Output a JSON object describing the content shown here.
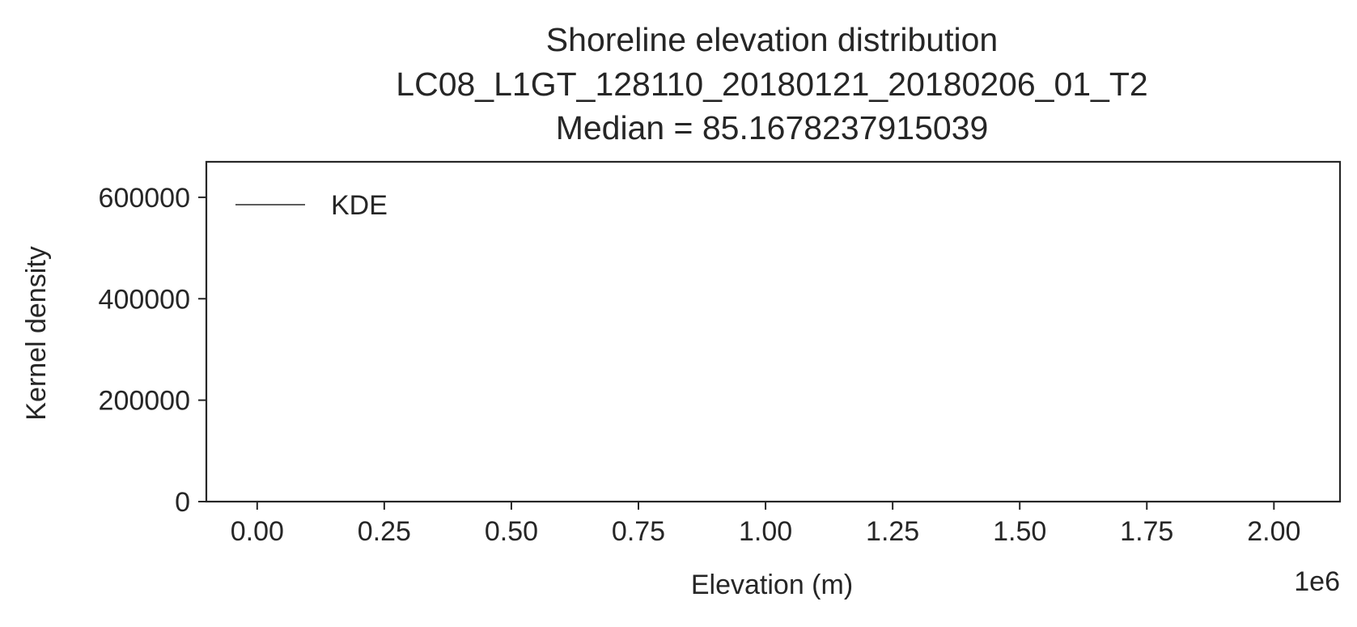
{
  "chart_data": {
    "type": "line",
    "title_lines": [
      "Shoreline elevation distribution",
      "LC08_L1GT_128110_20180121_20180206_01_T2",
      "Median = 85.1678237915039"
    ],
    "xlabel": "Elevation (m)",
    "ylabel": "Kernel density",
    "x_offset_label": "1e6",
    "xlim": [
      -100000,
      2130000
    ],
    "ylim": [
      0,
      670000
    ],
    "x_ticks": [
      0,
      250000,
      500000,
      750000,
      1000000,
      1250000,
      1500000,
      1750000,
      2000000
    ],
    "x_tick_labels": [
      "0.00",
      "0.25",
      "0.50",
      "0.75",
      "1.00",
      "1.25",
      "1.50",
      "1.75",
      "2.00"
    ],
    "y_ticks": [
      0,
      200000,
      400000,
      600000
    ],
    "y_tick_labels": [
      "0",
      "200000",
      "400000",
      "600000"
    ],
    "series": [
      {
        "name": "KDE",
        "x": [],
        "y": [],
        "color": "#262626"
      }
    ],
    "legend_position": "upper-left",
    "grid": false
  }
}
